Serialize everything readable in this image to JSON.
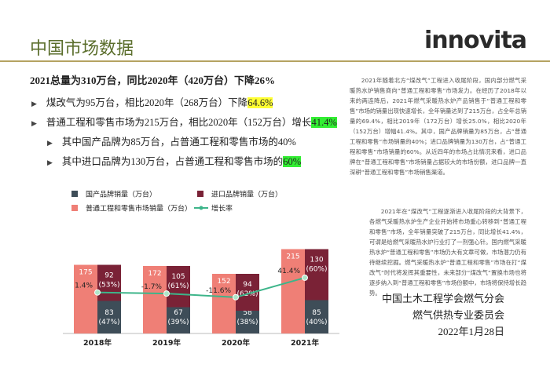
{
  "header": {
    "title": "中国市场数据",
    "logo": "innovita"
  },
  "headline": "2021总量为310万台，同比2020年（420万台）下降26%",
  "bullets": [
    [
      {
        "text": "煤改气为95万台，相比2020年（268万台）下降"
      },
      {
        "text": "64.6%",
        "highlight": "#ffff33"
      }
    ],
    [
      {
        "text": "普通工程和零售市场为215万台，相比2020年（152万台）增长"
      },
      {
        "text": "41.4%",
        "highlight": "#33ee33"
      }
    ],
    [
      {
        "text": "其中国产品牌为85万台，占普通工程和零售市场的40%"
      }
    ],
    [
      {
        "text": "其中进口品牌为130万台，占普通工程和零售市场的"
      },
      {
        "text": "60%",
        "highlight": "#33ee33"
      }
    ]
  ],
  "paragraphs": [
    "2021年随着北方“煤改气”工程进入收尾阶段，国内部分燃气采暖热水炉销售商向“普通工程和零售”市场发力。在经历了2018年以来的两连降后，2021年燃气采暖热水炉产品销售于“普通工程和零售”市场的销量出现快速增长，全年销量达到了215万台，占全年总销量的69.4%，相比2019年（172万台）增长25.0%，相比2020年（152万台）增幅41.4%。其中，国产品牌销量为85万台，占“普通工程和零售”市场销量的40%；进口品牌销量为130万台，占“普通工程和零售”市场销量的60%。从近四年的市场占比情况来看，进口品牌在“普通工程和零售”市场销量占据较大的市场份额，进口品牌一直深耕“普通工程和零售”市场销售渠道。",
    "2021年在“煤改气”工程逐渐进入收尾阶段的大背景下，各燃气采暖热水炉生产企业开始将市场重心转移到“普通工程和零售”市场，全年销量突破了215万台，同比增长41.4%，可谓是给燃气采暖热水炉行业打了一剂强心针。国内燃气采暖热水炉“普通工程和零售”市场仍大有文章可做，市场潜力仍有待继续挖掘。燃气采暖热水炉“普通工程和零售”市场在打“煤改气”时代将发挥其重要性，未来部分“煤改气”置换市场也将逐步纳入到“普通工程和零售”市场份额中，市场将保持增长趋势。"
  ],
  "footer": [
    "中国土木工程学会燃气分会",
    "燃气供热专业委员会",
    "2022年1月28日"
  ],
  "chart_data": {
    "type": "bar",
    "categories": [
      "2018年",
      "2019年",
      "2020年",
      "2021年"
    ],
    "series": [
      {
        "name": "国产品牌销量（万台）",
        "color": "#3e4d58",
        "values": [
          83,
          67,
          58,
          85
        ],
        "share_labels": [
          "(47%)",
          "(39%)",
          "(38%)",
          "(40%)"
        ]
      },
      {
        "name": "进口品牌销量（万台）",
        "color": "#7a2236",
        "values": [
          92,
          105,
          94,
          130
        ],
        "share_labels": [
          "(53%)",
          "(61%)",
          "(62%)",
          "(60%)"
        ]
      },
      {
        "name": "普通工程和零售市场销量（万台）",
        "color": "#ef7f76",
        "values": [
          175,
          172,
          152,
          215
        ]
      },
      {
        "name": "增长率",
        "type": "line",
        "axis": "y2",
        "color": "#3db58a",
        "values": [
          1.4,
          -1.7,
          -11.6,
          41.4
        ],
        "value_labels": [
          "1.4%",
          "-1.7%",
          "-11.6%",
          "41.4%"
        ]
      }
    ],
    "ylim": [
      0,
      230
    ],
    "y2lim": [
      -110,
      135
    ]
  }
}
